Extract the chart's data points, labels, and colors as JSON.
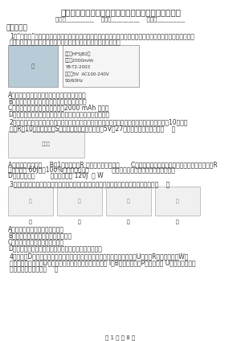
{
  "title": "浙教版九年级科学《电功电功率》提高练习题科学试卷",
  "subtitle": "姓名：__________    班级：__________    成绩：__________",
  "section1": "一、选择题",
  "q1_line1": "1．“充电宝”是指可在直接插转移动设备充电且自身具有储电单元的装置，是近年来比较流行的数码消费设备。",
  "q1_line2": "如图为某品牌充电宝的铭牌，根据铭牌上的信息，下列分析正确的是",
  "q1_spec_lines": [
    "型号：HFSJB2型",
    "容量：2000mAh",
    "YB-T2-2003",
    "输入：5V  AC100-240V",
    "50/60Hz"
  ],
  "q1_options": [
    "A．对充电宝充电时充电宝相当于电路中的电源",
    "B．该品牌的充电宝在美规电网中不能正常工作",
    "C．该品牌的充电宝最大可储储存2000 mAh 的电能",
    "D．对充电宝给手机充电过程中充电宝中能的总量合不断减少"
  ],
  "q2_line1": "2．电阻断求为一个反应汽车上温控制电路，小明对此进行测量和研究发现，有效视的结断电阻为10，保护",
  "q2_line2": "电阻R为10，当闭合开关S后，两电压表的示数分别为5V和27，对于列说法正确的是（    ）",
  "q2_options": [
    "A．电路中的电流为    B．1分钟在电阻R 上，电动机的功率为      C．电动机工作时将机械能转化为电能，若有电阻R",
    "上产生热能 60J，车100%，它两端的电压            跟成消动变阻器，可测平电动机的转速",
    "D．电源电压为        动机消耗电能 120J  为 W"
  ],
  "q3_text": "3．如图所示的护乙丙丁四个装置，可以用来演示相应的科学现象，都下列说法正确的是（    ）",
  "q3_image_labels": [
    "甲",
    "乙",
    "丙",
    "丁"
  ],
  "q3_options": [
    "A．图甲可用来演示电磁感应现象",
    "B．图乙可用来演示磁场对电流的作用",
    "C．图丙可用来演示电流的磁效应",
    "D．图丁可用来演示电磁铁的磁性强弱与电流大小的关系"
  ],
  "q4_line1": "4．如图，D为电子元件，起遮数作用，部分一定条件下可保持其两端的电压U不变，R为定制电阻，W为",
  "q4_line2": "电压可调的电源。当D增超压应时，下列测该电路中的电流 I、B消耗的电功率P随电源电压 U总变化关系的图",
  "q4_line3": "线中，可能正确的是（    ）",
  "page_footer": "第 1 页 共 8 页",
  "bg_color": "#ffffff",
  "text_color": "#333333",
  "title_fontsize": 7.5,
  "body_fontsize": 5.5,
  "section_fontsize": 6.5
}
